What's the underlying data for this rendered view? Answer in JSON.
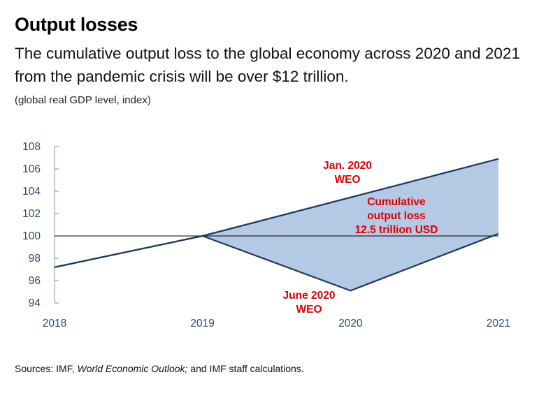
{
  "header": {
    "title": "Output losses",
    "subtitle": "The cumulative output loss to the global economy across 2020 and 2021 from the pandemic crisis will be over $12 trillion.",
    "units": "(global real GDP level, index)"
  },
  "footer": {
    "source_prefix": "Sources: IMF, ",
    "source_italic": "World Economic Outlook;",
    "source_suffix": " and IMF staff calculations."
  },
  "colors": {
    "line": "#1f3a5f",
    "fill": "#b4c9e4",
    "axis": "#7f8fa6",
    "annotation": "#e00000"
  },
  "chart_data": {
    "type": "line",
    "x": [
      2018,
      2019,
      2020,
      2021
    ],
    "x_tick_labels": [
      "2018",
      "2019",
      "2020",
      "2021"
    ],
    "ylim": [
      94,
      108
    ],
    "y_ticks": [
      94,
      96,
      98,
      100,
      102,
      104,
      106,
      108
    ],
    "reference_line": 100,
    "series": [
      {
        "name": "Jan. 2020 WEO",
        "x": [
          2018,
          2019,
          2021
        ],
        "values": [
          97.2,
          100.0,
          106.9
        ]
      },
      {
        "name": "June 2020 WEO",
        "x": [
          2018,
          2019,
          2020,
          2021
        ],
        "values": [
          97.2,
          100.0,
          95.1,
          100.2
        ]
      }
    ],
    "shaded_area": "between Jan. 2020 WEO and June 2020 WEO from 2019 to 2021",
    "annotations": [
      {
        "lines": [
          "Jan. 2020",
          "WEO"
        ]
      },
      {
        "lines": [
          "June 2020",
          "WEO"
        ]
      },
      {
        "lines": [
          "Cumulative",
          "output loss",
          "12.5 trillion USD"
        ]
      }
    ]
  }
}
